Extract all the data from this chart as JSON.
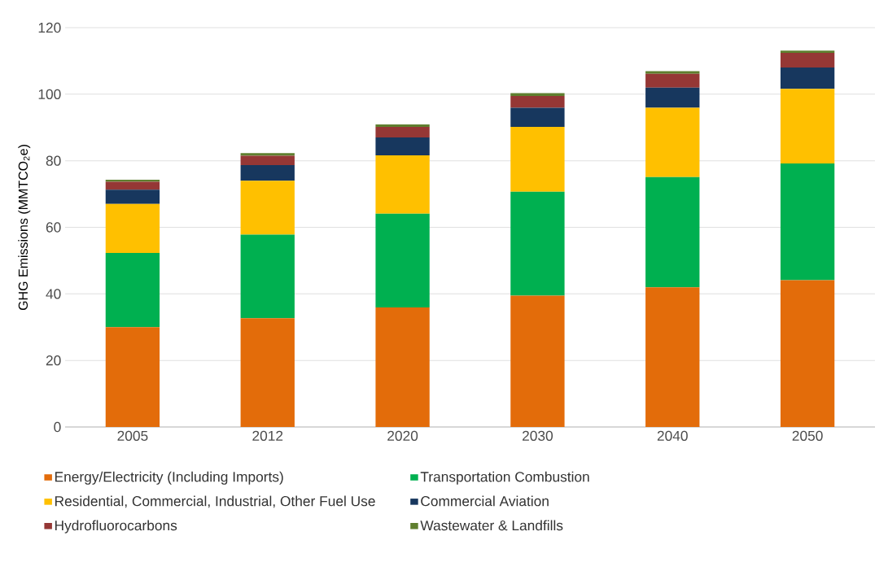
{
  "chart_data": {
    "type": "bar",
    "stacked": true,
    "ylabel": "GHG Emissions (MMTCO$_{2}$e)",
    "categories": [
      "2005",
      "2012",
      "2020",
      "2030",
      "2040",
      "2050"
    ],
    "series": [
      {
        "name": "Energy/Electricity (Including Imports)",
        "color": "#e36c0a",
        "values": [
          30.0,
          32.7,
          35.9,
          39.5,
          42.0,
          44.1
        ]
      },
      {
        "name": "Transportation Combustion",
        "color": "#00b050",
        "values": [
          22.3,
          25.1,
          28.2,
          31.2,
          33.1,
          35.1
        ]
      },
      {
        "name": "Residential, Commercial, Industrial, Other Fuel Use",
        "color": "#ffc000",
        "values": [
          14.7,
          16.2,
          17.5,
          19.5,
          20.8,
          22.4
        ]
      },
      {
        "name": "Commercial Aviation",
        "color": "#17375e",
        "values": [
          4.3,
          4.7,
          5.4,
          5.7,
          6.1,
          6.4
        ]
      },
      {
        "name": "Hydrofluorocarbons",
        "color": "#953735",
        "values": [
          2.4,
          2.8,
          3.2,
          3.6,
          4.1,
          4.4
        ]
      },
      {
        "name": "Wastewater & Landfills",
        "color": "#5f7f2f",
        "values": [
          0.6,
          0.8,
          0.7,
          0.8,
          0.8,
          0.7
        ]
      }
    ],
    "ylim": [
      0,
      120
    ],
    "yticks": [
      0,
      20,
      40,
      60,
      80,
      100,
      120
    ],
    "grid": "y",
    "legend": "bottom"
  }
}
